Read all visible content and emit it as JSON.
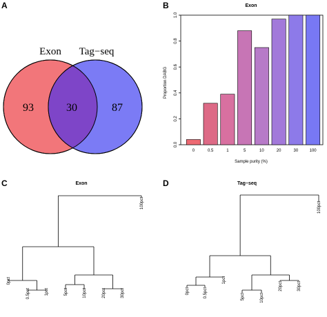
{
  "figure": {
    "panels": {
      "a": "A",
      "b": "B",
      "c": "C",
      "d": "D"
    }
  },
  "venn": {
    "sets": [
      {
        "label": "Exon",
        "only": "93",
        "color": "#f2767a"
      },
      {
        "label": "Tag−seq",
        "only": "87",
        "color": "#7b7bf5"
      }
    ],
    "overlap": "30",
    "overlap_color": "#7e45c8"
  },
  "chart_data": [
    {
      "type": "bar",
      "panel": "B",
      "title": "Exon",
      "xlabel": "Sample purity (%)",
      "ylabel": "Proportion DABG",
      "categories": [
        "0",
        "0.5",
        "1",
        "5",
        "10",
        "20",
        "30",
        "100"
      ],
      "values": [
        0.04,
        0.32,
        0.39,
        0.88,
        0.75,
        0.97,
        1.0,
        1.0
      ],
      "colors": [
        "#ee6a73",
        "#dd6a86",
        "#d870a0",
        "#c775b5",
        "#b77ac8",
        "#a279da",
        "#8d7ae9",
        "#7878f4"
      ],
      "ylim": [
        0,
        1.0
      ],
      "yticks": [
        "0.0",
        "0.2",
        "0.4",
        "0.6",
        "0.8",
        "1.0"
      ]
    },
    {
      "type": "dendrogram",
      "panel": "C",
      "title": "Exon",
      "leaves": [
        "0pct",
        "0.5pct",
        "1pct",
        "5pct",
        "10pct",
        "20pct",
        "30pct",
        "100pct"
      ]
    },
    {
      "type": "dendrogram",
      "panel": "D",
      "title": "Tag−seq",
      "leaves": [
        "0pct",
        "0.5pct",
        "1pct",
        "5pct",
        "10pct",
        "20pct",
        "30pct",
        "100pct"
      ]
    }
  ]
}
